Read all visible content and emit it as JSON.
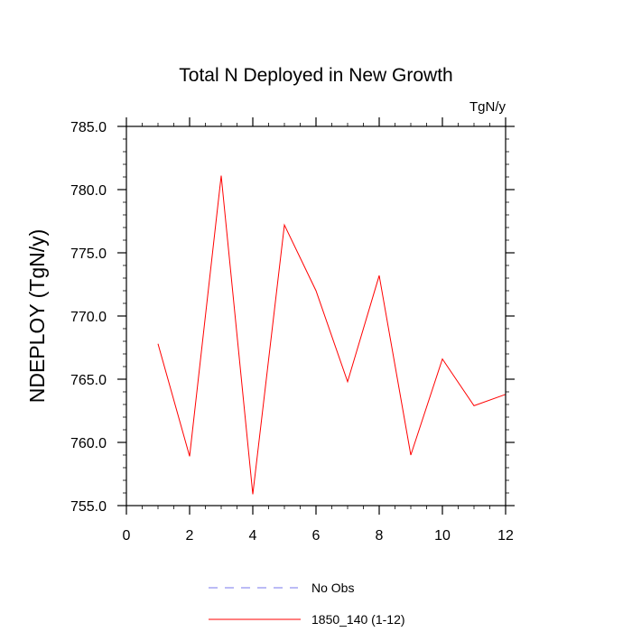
{
  "chart_data": {
    "type": "line",
    "title": "Total N Deployed in New Growth",
    "units": "TgN/y",
    "ylabel": "NDEPLOY  (TgN/y)",
    "xlabel": "",
    "xlim": [
      0,
      12
    ],
    "ylim": [
      755,
      785
    ],
    "x_ticks": [
      "0",
      "2",
      "4",
      "6",
      "8",
      "10",
      "12"
    ],
    "y_ticks": [
      "755.0",
      "760.0",
      "765.0",
      "770.0",
      "775.0",
      "780.0",
      "785.0"
    ],
    "series": [
      {
        "name": "1850_140 (1-12)",
        "color": "#ff0000",
        "style": "solid",
        "x": [
          1,
          2,
          3,
          4,
          5,
          6,
          7,
          8,
          9,
          10,
          11,
          12
        ],
        "values": [
          767.8,
          758.9,
          781.1,
          755.9,
          777.2,
          772.0,
          764.8,
          773.2,
          759.0,
          766.6,
          762.9,
          763.8
        ]
      },
      {
        "name": "No Obs",
        "color": "#7777ee",
        "style": "dashed",
        "x": [],
        "values": []
      }
    ],
    "legend": [
      "No Obs",
      "1850_140 (1-12)"
    ],
    "legend_position": "bottom"
  }
}
